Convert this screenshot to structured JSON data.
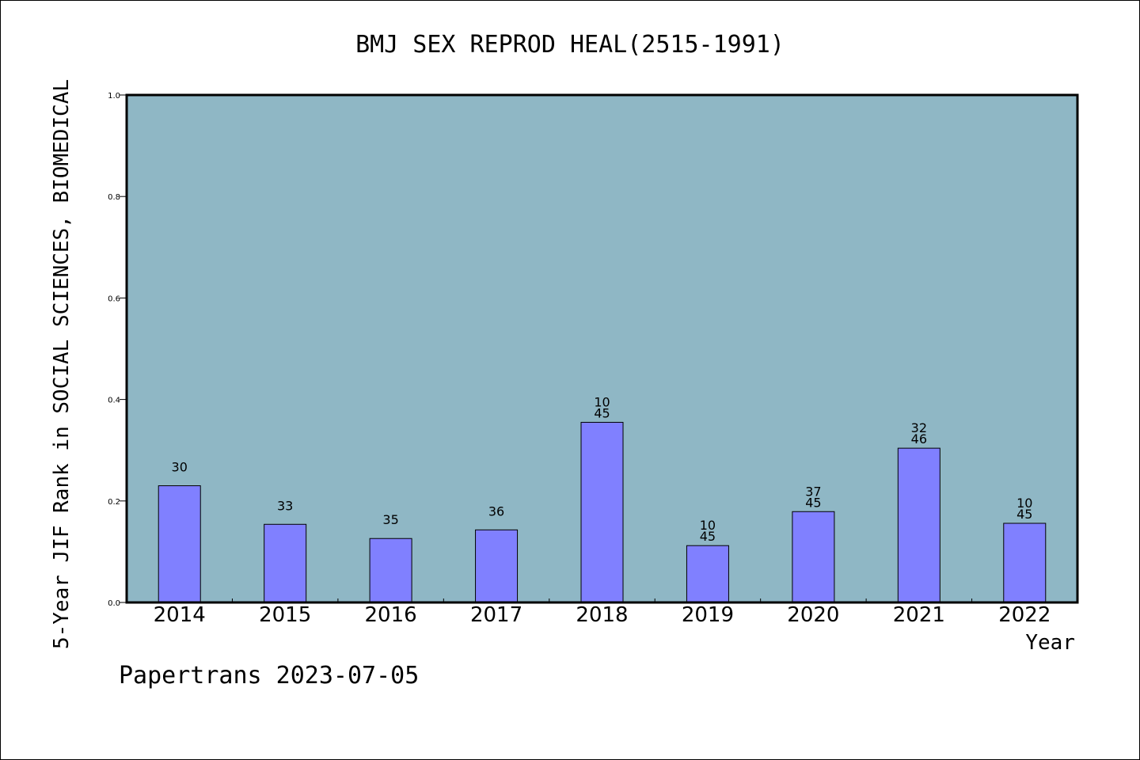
{
  "chart_data": {
    "type": "bar",
    "title": "BMJ SEX REPROD HEAL(2515-1991)",
    "xlabel": "Year",
    "ylabel": "5-Year JIF Rank in SOCIAL SCIENCES, BIOMEDICAL",
    "ylim": [
      0,
      1.0
    ],
    "yticks": [
      "0.0",
      "0.2",
      "0.4",
      "0.6",
      "0.8",
      "1.0"
    ],
    "categories": [
      "2014",
      "2015",
      "2016",
      "2017",
      "2018",
      "2019",
      "2020",
      "2021",
      "2022"
    ],
    "values": [
      0.23,
      0.154,
      0.126,
      0.143,
      0.355,
      0.112,
      0.179,
      0.304,
      0.156
    ],
    "bar_labels": [
      [
        "30"
      ],
      [
        "33"
      ],
      [
        "35"
      ],
      [
        "36"
      ],
      [
        "10",
        "45"
      ],
      [
        "10",
        "45"
      ],
      [
        "37",
        "45"
      ],
      [
        "32",
        "46"
      ],
      [
        "10",
        "45"
      ]
    ],
    "colors": {
      "plot_bg": "#8fb7c5",
      "bar": "#8080ff",
      "axis": "#000000"
    }
  },
  "footer": {
    "credit": "Papertrans 2023-07-05"
  }
}
